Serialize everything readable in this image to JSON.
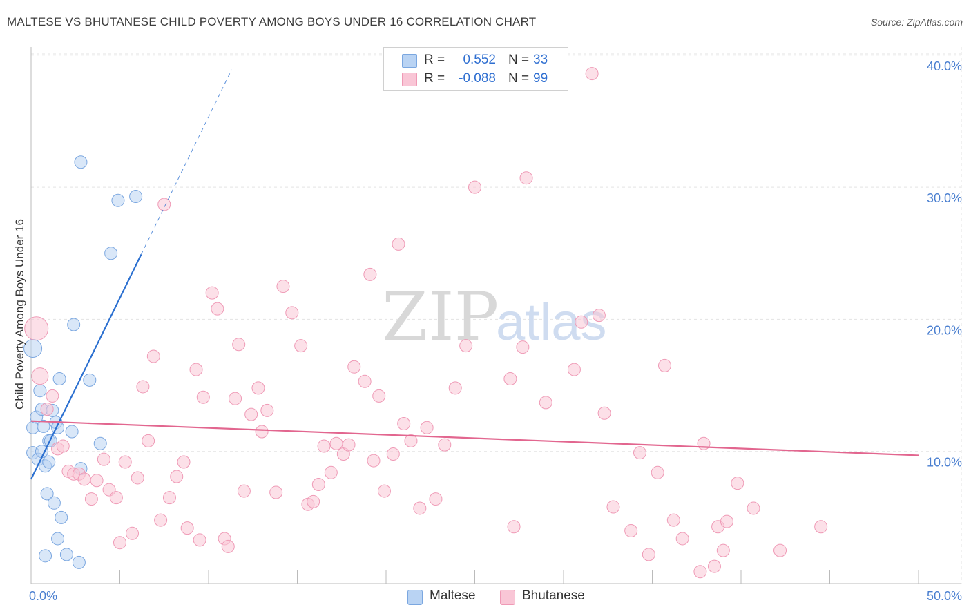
{
  "title": "MALTESE VS BHUTANESE CHILD POVERTY AMONG BOYS UNDER 16 CORRELATION CHART",
  "source": "Source: ZipAtlas.com",
  "watermark": {
    "zip": "ZIP",
    "atlas": "atlas"
  },
  "stats": [
    {
      "r_label": "R =",
      "r_value": "0.552",
      "n_label": "N =",
      "n_value": "33",
      "color": "#b9d3f3",
      "border": "#7ba7e0"
    },
    {
      "r_label": "R =",
      "r_value": "-0.088",
      "n_label": "N =",
      "n_value": "99",
      "color": "#f9c6d6",
      "border": "#ef9ab6"
    }
  ],
  "legend": [
    {
      "label": "Maltese",
      "color": "#b9d3f3",
      "border": "#7ba7e0"
    },
    {
      "label": "Bhutanese",
      "color": "#f9c6d6",
      "border": "#ef9ab6"
    }
  ],
  "chart_data": {
    "type": "scatter",
    "title": "MALTESE VS BHUTANESE CHILD POVERTY AMONG BOYS UNDER 16 CORRELATION CHART",
    "ylabel": "Child Poverty Among Boys Under 16",
    "xlabel": "",
    "xlim": [
      0,
      50
    ],
    "ylim": [
      0,
      40
    ],
    "x_tick_labels": [
      {
        "value": 0,
        "label": "0.0%"
      },
      {
        "value": 50,
        "label": "50.0%"
      }
    ],
    "y_tick_labels": [
      {
        "value": 10,
        "label": "10.0%"
      },
      {
        "value": 20,
        "label": "20.0%"
      },
      {
        "value": 30,
        "label": "30.0%"
      },
      {
        "value": 40,
        "label": "40.0%"
      }
    ],
    "series": [
      {
        "name": "Maltese",
        "color": "#b9d3f3",
        "stroke": "#7ba7e0",
        "trend_color": "#2a6fd0",
        "trend": {
          "x0": 0,
          "y0": 7.9,
          "x1": 6.2,
          "y1": 24.9,
          "dash_to_x": 11.3,
          "dash_to_y": 38.9
        },
        "points": [
          [
            0.1,
            17.8,
            13
          ],
          [
            0.1,
            11.8,
            9
          ],
          [
            0.1,
            9.9,
            9
          ],
          [
            0.3,
            12.6,
            9
          ],
          [
            0.4,
            9.4,
            9
          ],
          [
            0.5,
            14.6,
            9
          ],
          [
            0.6,
            10,
            9
          ],
          [
            0.6,
            13.2,
            9
          ],
          [
            0.7,
            11.9,
            9
          ],
          [
            0.8,
            8.9,
            9
          ],
          [
            0.8,
            2.1,
            9
          ],
          [
            0.9,
            6.8,
            9
          ],
          [
            1.0,
            9.2,
            9
          ],
          [
            1.0,
            10.8,
            9
          ],
          [
            1.1,
            10.8,
            9
          ],
          [
            1.2,
            13.1,
            9
          ],
          [
            1.3,
            6.1,
            9
          ],
          [
            1.4,
            12.2,
            9
          ],
          [
            1.5,
            3.4,
            9
          ],
          [
            1.5,
            11.8,
            9
          ],
          [
            1.6,
            15.5,
            9
          ],
          [
            1.7,
            5.0,
            9
          ],
          [
            2.0,
            2.2,
            9
          ],
          [
            2.3,
            11.5,
            9
          ],
          [
            2.4,
            19.6,
            9
          ],
          [
            2.7,
            1.6,
            9
          ],
          [
            2.8,
            8.7,
            9
          ],
          [
            2.8,
            31.9,
            9
          ],
          [
            3.3,
            15.4,
            9
          ],
          [
            3.9,
            10.6,
            9
          ],
          [
            4.5,
            25.0,
            9
          ],
          [
            4.9,
            29.0,
            9
          ],
          [
            5.9,
            29.3,
            9
          ]
        ]
      },
      {
        "name": "Bhutanese",
        "color": "#f9c6d6",
        "stroke": "#ef9ab6",
        "trend_color": "#e2668f",
        "trend": {
          "x0": 0,
          "y0": 12.3,
          "x1": 50,
          "y1": 9.7
        },
        "points": [
          [
            0.3,
            19.3,
            17
          ],
          [
            0.5,
            15.7,
            12
          ],
          [
            0.9,
            13.2,
            9
          ],
          [
            1.2,
            14.2,
            9
          ],
          [
            1.5,
            10.2,
            9
          ],
          [
            1.8,
            10.4,
            9
          ],
          [
            2.1,
            8.5,
            9
          ],
          [
            2.4,
            8.3,
            9
          ],
          [
            2.7,
            8.3,
            9
          ],
          [
            3.0,
            7.9,
            9
          ],
          [
            3.4,
            6.4,
            9
          ],
          [
            3.7,
            7.8,
            9
          ],
          [
            4.1,
            9.4,
            9
          ],
          [
            4.4,
            7.1,
            9
          ],
          [
            4.8,
            6.5,
            9
          ],
          [
            5.0,
            3.1,
            9
          ],
          [
            5.3,
            9.2,
            9
          ],
          [
            5.7,
            3.8,
            9
          ],
          [
            6.0,
            8.0,
            9
          ],
          [
            6.3,
            14.9,
            9
          ],
          [
            6.6,
            10.8,
            9
          ],
          [
            6.9,
            17.2,
            9
          ],
          [
            7.3,
            4.8,
            9
          ],
          [
            7.5,
            28.7,
            9
          ],
          [
            7.8,
            6.5,
            9
          ],
          [
            8.2,
            8.1,
            9
          ],
          [
            8.6,
            9.2,
            9
          ],
          [
            8.8,
            4.2,
            9
          ],
          [
            9.3,
            16.2,
            9
          ],
          [
            9.5,
            3.3,
            9
          ],
          [
            9.7,
            14.1,
            9
          ],
          [
            10.2,
            22.0,
            9
          ],
          [
            10.5,
            20.8,
            9
          ],
          [
            10.9,
            3.4,
            9
          ],
          [
            11.1,
            2.8,
            9
          ],
          [
            11.5,
            14.0,
            9
          ],
          [
            11.7,
            18.1,
            9
          ],
          [
            12.0,
            7.0,
            9
          ],
          [
            12.4,
            12.8,
            9
          ],
          [
            12.8,
            14.8,
            9
          ],
          [
            13.0,
            11.5,
            9
          ],
          [
            13.3,
            13.1,
            9
          ],
          [
            13.8,
            6.9,
            9
          ],
          [
            14.2,
            22.5,
            9
          ],
          [
            14.7,
            20.5,
            9
          ],
          [
            15.2,
            18.0,
            9
          ],
          [
            15.6,
            6.0,
            9
          ],
          [
            15.9,
            6.2,
            9
          ],
          [
            16.2,
            7.5,
            9
          ],
          [
            16.5,
            10.4,
            9
          ],
          [
            16.9,
            8.4,
            9
          ],
          [
            17.2,
            10.6,
            9
          ],
          [
            17.6,
            9.8,
            9
          ],
          [
            17.9,
            10.5,
            9
          ],
          [
            18.2,
            16.4,
            9
          ],
          [
            18.8,
            15.3,
            9
          ],
          [
            19.1,
            23.4,
            9
          ],
          [
            19.3,
            9.3,
            9
          ],
          [
            19.6,
            14.2,
            9
          ],
          [
            19.9,
            7.0,
            9
          ],
          [
            20.4,
            9.8,
            9
          ],
          [
            20.7,
            25.7,
            9
          ],
          [
            21.0,
            12.1,
            9
          ],
          [
            21.4,
            10.8,
            9
          ],
          [
            21.9,
            5.7,
            9
          ],
          [
            22.3,
            11.8,
            9
          ],
          [
            22.8,
            6.4,
            9
          ],
          [
            23.3,
            10.5,
            9
          ],
          [
            23.9,
            14.8,
            9
          ],
          [
            24.5,
            18.0,
            9
          ],
          [
            25.0,
            30.0,
            9
          ],
          [
            27.0,
            15.5,
            9
          ],
          [
            27.2,
            4.3,
            9
          ],
          [
            27.7,
            17.9,
            9
          ],
          [
            27.9,
            30.7,
            9
          ],
          [
            29.0,
            13.7,
            9
          ],
          [
            30.6,
            16.2,
            9
          ],
          [
            31.0,
            19.8,
            9
          ],
          [
            31.6,
            38.6,
            9
          ],
          [
            32.0,
            20.3,
            9
          ],
          [
            32.3,
            12.9,
            9
          ],
          [
            32.8,
            5.8,
            9
          ],
          [
            33.8,
            4.0,
            9
          ],
          [
            34.3,
            9.9,
            9
          ],
          [
            34.8,
            2.2,
            9
          ],
          [
            35.3,
            8.4,
            9
          ],
          [
            35.7,
            16.5,
            9
          ],
          [
            36.2,
            4.8,
            9
          ],
          [
            36.7,
            3.4,
            9
          ],
          [
            37.7,
            0.9,
            9
          ],
          [
            37.9,
            10.6,
            9
          ],
          [
            38.5,
            1.3,
            9
          ],
          [
            38.7,
            4.3,
            9
          ],
          [
            39.0,
            2.5,
            9
          ],
          [
            39.2,
            4.7,
            9
          ],
          [
            39.8,
            7.6,
            9
          ],
          [
            40.7,
            5.7,
            9
          ],
          [
            42.2,
            2.5,
            9
          ],
          [
            44.5,
            4.3,
            9
          ]
        ]
      }
    ]
  }
}
